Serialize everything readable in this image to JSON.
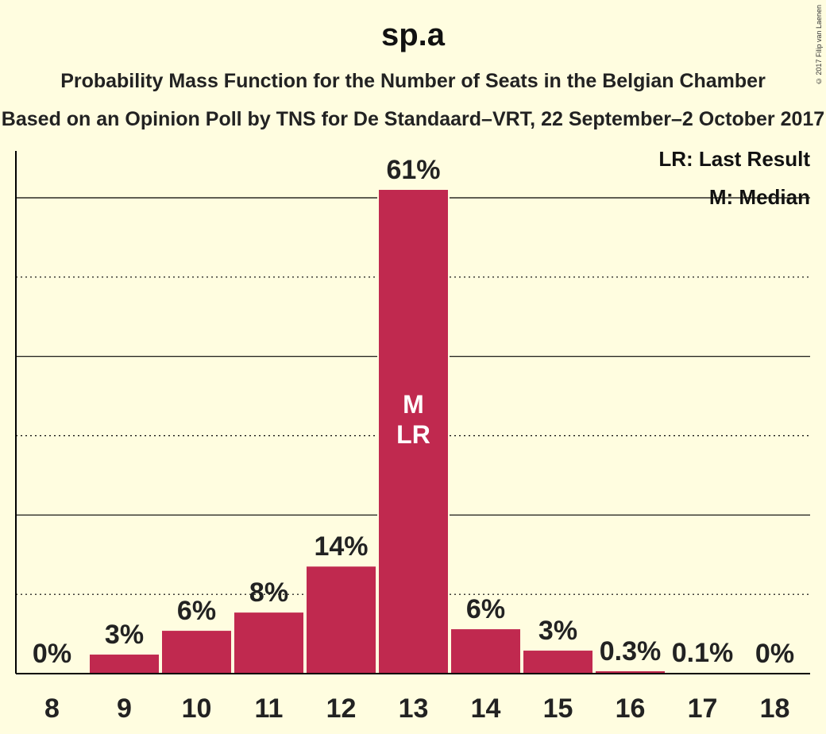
{
  "title": "sp.a",
  "subtitle": "Probability Mass Function for the Number of Seats in the Belgian Chamber",
  "subtitle2": "Based on an Opinion Poll by TNS for De Standaard–VRT, 22 September–2 October 2017",
  "copyright": "© 2017 Filip van Laenen",
  "legend": {
    "last_result": "LR: Last Result",
    "median": "M: Median"
  },
  "colors": {
    "bar": "#c0294f",
    "background": "#fffde0",
    "bar_inner_label": "#ffffff"
  },
  "chart_data": {
    "type": "bar",
    "title": "sp.a",
    "categories": [
      "8",
      "9",
      "10",
      "11",
      "12",
      "13",
      "14",
      "15",
      "16",
      "17",
      "18"
    ],
    "values": [
      0,
      3,
      6,
      8,
      14,
      61,
      6,
      3,
      0.3,
      0.1,
      0
    ],
    "labels": [
      "0%",
      "3%",
      "6%",
      "8%",
      "14%",
      "61%",
      "6%",
      "3%",
      "0.3%",
      "0.1%",
      "0%"
    ],
    "bar_heights_pct": [
      0,
      2.4,
      5.4,
      7.7,
      13.5,
      61,
      5.6,
      2.9,
      0.3,
      0.1,
      0
    ],
    "median_category": "13",
    "last_result_category": "13",
    "inner_labels": {
      "median": "M",
      "last_result": "LR"
    },
    "ylim": [
      0,
      60
    ],
    "gridlines": {
      "solid": [
        20,
        40,
        60
      ],
      "dotted": [
        10,
        30,
        50
      ]
    },
    "legend_position": "top-right"
  }
}
